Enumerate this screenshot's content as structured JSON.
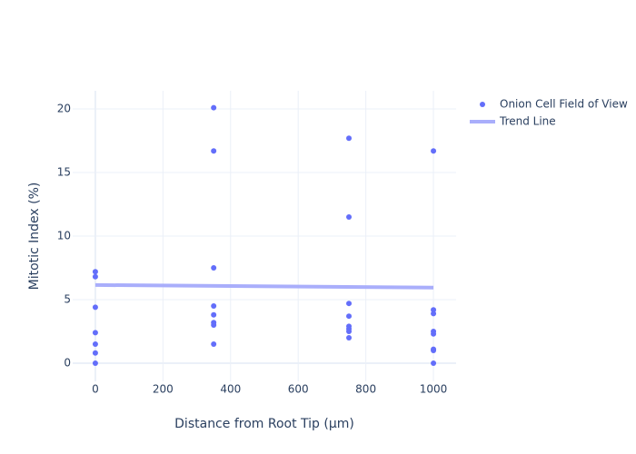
{
  "chart_data": {
    "type": "scatter",
    "x_label": "Distance from Root Tip (µm)",
    "y_label": "Mitotic Index (%)",
    "xlim": [
      -67,
      1067
    ],
    "ylim": [
      -1.43,
      21.43
    ],
    "xticks": [
      0,
      200,
      400,
      600,
      800,
      1000
    ],
    "yticks": [
      0,
      5,
      10,
      15,
      20
    ],
    "grid": true,
    "legend": "top-right",
    "series": [
      {
        "name": "Onion Cell Field of View",
        "color": "#636efa",
        "mode": "markers",
        "x": [
          0,
          0,
          0,
          0,
          0,
          0,
          0,
          350,
          350,
          350,
          350,
          350,
          350,
          350,
          350,
          750,
          750,
          750,
          750,
          750,
          750,
          750,
          750,
          1000,
          1000,
          1000,
          1000,
          1000,
          1000,
          1000,
          1000
        ],
        "values": [
          7.2,
          6.8,
          4.4,
          2.4,
          1.5,
          0.8,
          0,
          20.1,
          16.7,
          7.5,
          4.5,
          3.8,
          3.2,
          3.0,
          1.5,
          17.7,
          11.5,
          4.7,
          3.7,
          2.9,
          2.7,
          2.5,
          2.0,
          16.7,
          4.2,
          3.9,
          2.5,
          2.3,
          1.1,
          1.0,
          0
        ]
      },
      {
        "name": "Trend Line",
        "color": "#a9aefb",
        "mode": "line",
        "x": [
          0,
          1000
        ],
        "values": [
          6.15,
          5.95
        ]
      }
    ]
  }
}
